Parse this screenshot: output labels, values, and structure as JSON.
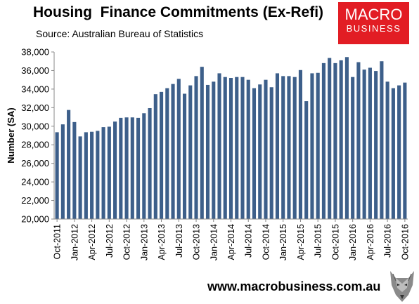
{
  "header": {
    "title": "Housing  Finance Commitments (Ex-Refi)",
    "subtitle": "Source: Australian Bureau of Statistics"
  },
  "logo": {
    "line1": "MACRO",
    "line2": "BUSINESS",
    "bg_color": "#e21d24"
  },
  "footer": {
    "url": "www.macrobusiness.com.au",
    "icon": "wolf-logo-icon"
  },
  "chart_data": {
    "type": "bar",
    "ylabel": "Number (SA)",
    "xlabel": "",
    "ylim": [
      20000,
      38000
    ],
    "yticks": [
      20000,
      22000,
      24000,
      26000,
      28000,
      30000,
      32000,
      34000,
      36000,
      38000
    ],
    "ytick_labels": [
      "20,000",
      "22,000",
      "24,000",
      "26,000",
      "28,000",
      "30,000",
      "32,000",
      "34,000",
      "36,000",
      "38,000"
    ],
    "bar_color": "#3d5f8a",
    "grid": false,
    "categories": [
      "Oct-2011",
      "Nov-2011",
      "Dec-2011",
      "Jan-2012",
      "Feb-2012",
      "Mar-2012",
      "Apr-2012",
      "May-2012",
      "Jun-2012",
      "Jul-2012",
      "Aug-2012",
      "Sep-2012",
      "Oct-2012",
      "Nov-2012",
      "Dec-2012",
      "Jan-2013",
      "Feb-2013",
      "Mar-2013",
      "Apr-2013",
      "May-2013",
      "Jun-2013",
      "Jul-2013",
      "Aug-2013",
      "Sep-2013",
      "Oct-2013",
      "Nov-2013",
      "Dec-2013",
      "Jan-2014",
      "Feb-2014",
      "Mar-2014",
      "Apr-2014",
      "May-2014",
      "Jun-2014",
      "Jul-2014",
      "Aug-2014",
      "Sep-2014",
      "Oct-2014",
      "Nov-2014",
      "Dec-2014",
      "Jan-2015",
      "Feb-2015",
      "Mar-2015",
      "Apr-2015",
      "May-2015",
      "Jun-2015",
      "Jul-2015",
      "Aug-2015",
      "Sep-2015",
      "Oct-2015",
      "Nov-2015",
      "Dec-2015",
      "Jan-2016",
      "Feb-2016",
      "Mar-2016",
      "Apr-2016",
      "May-2016",
      "Jun-2016",
      "Jul-2016",
      "Aug-2016",
      "Sep-2016",
      "Oct-2016"
    ],
    "tick_labels": [
      "Oct-2011",
      "Jan-2012",
      "Apr-2012",
      "Jul-2012",
      "Oct-2012",
      "Jan-2013",
      "Apr-2013",
      "Jul-2013",
      "Oct-2013",
      "Jan-2014",
      "Apr-2014",
      "Jul-2014",
      "Oct-2014",
      "Jan-2015",
      "Apr-2015",
      "Jul-2015",
      "Oct-2015",
      "Jan-2016",
      "Apr-2016",
      "Jul-2016",
      "Oct-2016"
    ],
    "values": [
      29350,
      30200,
      31750,
      30450,
      28900,
      29350,
      29400,
      29500,
      29900,
      29950,
      30500,
      30900,
      30950,
      30950,
      30900,
      31400,
      31950,
      33450,
      33700,
      34100,
      34550,
      35100,
      33500,
      34400,
      35400,
      36400,
      34450,
      34800,
      35700,
      35300,
      35200,
      35300,
      35300,
      35000,
      34100,
      34500,
      35000,
      34200,
      35700,
      35400,
      35400,
      35300,
      36050,
      32700,
      35700,
      35750,
      36800,
      37350,
      36800,
      37100,
      37450,
      35300,
      36900,
      36100,
      36300,
      35950,
      37000,
      34800,
      34100,
      34400,
      34700
    ]
  }
}
